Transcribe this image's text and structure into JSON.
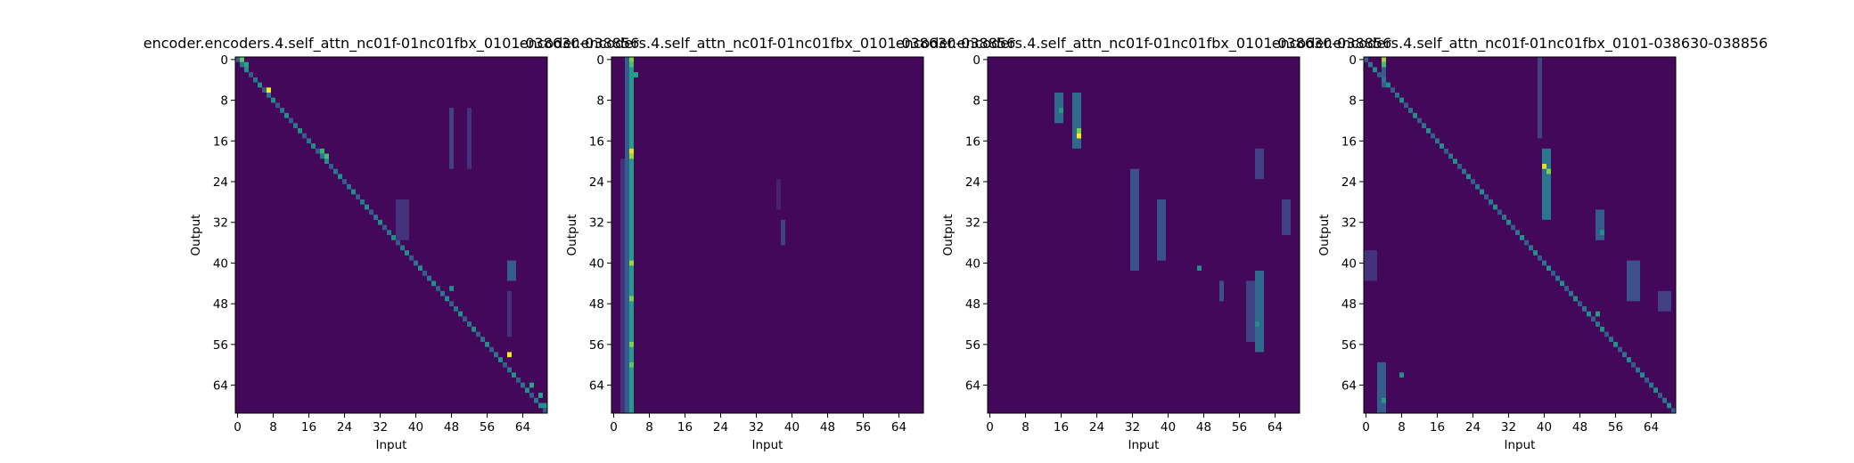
{
  "chart_data": [
    {
      "type": "heatmap",
      "title": "encoder.encoders.4.self_attn_nc01f-01nc01fbx_0101-038630-038856",
      "xlabel": "Input",
      "ylabel": "Output",
      "xlim": [
        0,
        70
      ],
      "ylim": [
        0,
        70
      ],
      "xticks": [
        "0",
        "8",
        "16",
        "24",
        "32",
        "40",
        "48",
        "56",
        "64"
      ],
      "yticks": [
        "0",
        "8",
        "16",
        "24",
        "32",
        "40",
        "48",
        "56",
        "64"
      ],
      "colormap": "viridis",
      "highlights": [
        {
          "x": 1,
          "y": 0,
          "v": 0.75
        },
        {
          "x": 2,
          "y": 1,
          "v": 0.6
        },
        {
          "x": 7,
          "y": 6,
          "v": 1.0
        },
        {
          "x": 19,
          "y": 18,
          "v": 0.65
        },
        {
          "x": 20,
          "y": 19,
          "v": 0.7
        },
        {
          "x": 61,
          "y": 58,
          "v": 1.0
        },
        {
          "x": 48,
          "y": 45,
          "v": 0.5
        },
        {
          "x": 66,
          "y": 64,
          "v": 0.6
        },
        {
          "x": 68,
          "y": 66,
          "v": 0.6
        },
        {
          "x": 69,
          "y": 68,
          "v": 0.5
        }
      ],
      "bands": [
        {
          "x0": 48,
          "x1": 49,
          "y0": 10,
          "y1": 22,
          "v": 0.2
        },
        {
          "x0": 52,
          "x1": 53,
          "y0": 10,
          "y1": 22,
          "v": 0.15
        },
        {
          "x0": 36,
          "x1": 39,
          "y0": 28,
          "y1": 36,
          "v": 0.15
        },
        {
          "x0": 61,
          "x1": 63,
          "y0": 40,
          "y1": 44,
          "v": 0.3
        },
        {
          "x0": 61,
          "x1": 62,
          "y0": 46,
          "y1": 55,
          "v": 0.15
        }
      ],
      "diagonal": true
    },
    {
      "type": "heatmap",
      "title": "encoder.encoders.4.self_attn_nc01f-01nc01fbx_0101-038630-038856",
      "xlabel": "Input",
      "ylabel": "Output",
      "xlim": [
        0,
        70
      ],
      "ylim": [
        0,
        70
      ],
      "xticks": [
        "0",
        "8",
        "16",
        "24",
        "32",
        "40",
        "48",
        "56",
        "64"
      ],
      "yticks": [
        "0",
        "8",
        "16",
        "24",
        "32",
        "40",
        "48",
        "56",
        "64"
      ],
      "colormap": "viridis",
      "highlights": [
        {
          "x": 4,
          "y": 0,
          "v": 0.8
        },
        {
          "x": 4,
          "y": 1,
          "v": 0.7
        },
        {
          "x": 5,
          "y": 3,
          "v": 0.6
        },
        {
          "x": 4,
          "y": 18,
          "v": 0.95
        },
        {
          "x": 4,
          "y": 19,
          "v": 0.85
        },
        {
          "x": 4,
          "y": 40,
          "v": 0.85
        },
        {
          "x": 4,
          "y": 47,
          "v": 0.8
        },
        {
          "x": 4,
          "y": 56,
          "v": 0.8
        },
        {
          "x": 4,
          "y": 60,
          "v": 0.75
        }
      ],
      "bands": [
        {
          "x0": 4,
          "x1": 5,
          "y0": 0,
          "y1": 70,
          "v": 0.55
        },
        {
          "x0": 3,
          "x1": 4,
          "y0": 0,
          "y1": 70,
          "v": 0.3
        },
        {
          "x0": 2,
          "x1": 3,
          "y0": 20,
          "y1": 70,
          "v": 0.15
        },
        {
          "x0": 38,
          "x1": 39,
          "y0": 32,
          "y1": 37,
          "v": 0.2
        },
        {
          "x0": 37,
          "x1": 38,
          "y0": 24,
          "y1": 30,
          "v": 0.1
        }
      ],
      "diagonal": false
    },
    {
      "type": "heatmap",
      "title": "encoder.encoders.4.self_attn_nc01f-01nc01fbx_0101-038630-038856",
      "xlabel": "Input",
      "ylabel": "Output",
      "xlim": [
        0,
        70
      ],
      "ylim": [
        0,
        70
      ],
      "xticks": [
        "0",
        "8",
        "16",
        "24",
        "32",
        "40",
        "48",
        "56",
        "64"
      ],
      "yticks": [
        "0",
        "8",
        "16",
        "24",
        "32",
        "40",
        "48",
        "56",
        "64"
      ],
      "colormap": "viridis",
      "highlights": [
        {
          "x": 20,
          "y": 15,
          "v": 1.0
        },
        {
          "x": 20,
          "y": 14,
          "v": 0.8
        },
        {
          "x": 16,
          "y": 10,
          "v": 0.55
        },
        {
          "x": 47,
          "y": 41,
          "v": 0.5
        },
        {
          "x": 60,
          "y": 52,
          "v": 0.5
        }
      ],
      "bands": [
        {
          "x0": 15,
          "x1": 17,
          "y0": 7,
          "y1": 13,
          "v": 0.35
        },
        {
          "x0": 19,
          "x1": 21,
          "y0": 7,
          "y1": 18,
          "v": 0.35
        },
        {
          "x0": 32,
          "x1": 34,
          "y0": 22,
          "y1": 42,
          "v": 0.25
        },
        {
          "x0": 38,
          "x1": 40,
          "y0": 28,
          "y1": 40,
          "v": 0.25
        },
        {
          "x0": 60,
          "x1": 62,
          "y0": 42,
          "y1": 58,
          "v": 0.35
        },
        {
          "x0": 58,
          "x1": 60,
          "y0": 44,
          "y1": 56,
          "v": 0.2
        },
        {
          "x0": 60,
          "x1": 62,
          "y0": 18,
          "y1": 24,
          "v": 0.2
        },
        {
          "x0": 66,
          "x1": 68,
          "y0": 28,
          "y1": 35,
          "v": 0.2
        },
        {
          "x0": 52,
          "x1": 53,
          "y0": 44,
          "y1": 48,
          "v": 0.25
        }
      ],
      "diagonal": false
    },
    {
      "type": "heatmap",
      "title": "encoder.encoders.4.self_attn_nc01f-01nc01fbx_0101-038630-038856",
      "xlabel": "Input",
      "ylabel": "Output",
      "xlim": [
        0,
        70
      ],
      "ylim": [
        0,
        70
      ],
      "xticks": [
        "0",
        "8",
        "16",
        "24",
        "32",
        "40",
        "48",
        "56",
        "64"
      ],
      "yticks": [
        "0",
        "8",
        "16",
        "24",
        "32",
        "40",
        "48",
        "56",
        "64"
      ],
      "colormap": "viridis",
      "highlights": [
        {
          "x": 4,
          "y": 0,
          "v": 0.85
        },
        {
          "x": 4,
          "y": 1,
          "v": 0.7
        },
        {
          "x": 40,
          "y": 21,
          "v": 0.95
        },
        {
          "x": 41,
          "y": 22,
          "v": 0.8
        },
        {
          "x": 4,
          "y": 67,
          "v": 0.55
        },
        {
          "x": 8,
          "y": 62,
          "v": 0.5
        },
        {
          "x": 52,
          "y": 50,
          "v": 0.55
        },
        {
          "x": 53,
          "y": 34,
          "v": 0.5
        }
      ],
      "bands": [
        {
          "x0": 40,
          "x1": 42,
          "y0": 18,
          "y1": 32,
          "v": 0.4
        },
        {
          "x0": 39,
          "x1": 40,
          "y0": 0,
          "y1": 16,
          "v": 0.2
        },
        {
          "x0": 4,
          "x1": 5,
          "y0": 0,
          "y1": 6,
          "v": 0.3
        },
        {
          "x0": 0,
          "x1": 3,
          "y0": 38,
          "y1": 44,
          "v": 0.15
        },
        {
          "x0": 3,
          "x1": 5,
          "y0": 60,
          "y1": 70,
          "v": 0.3
        },
        {
          "x0": 52,
          "x1": 54,
          "y0": 30,
          "y1": 36,
          "v": 0.3
        },
        {
          "x0": 59,
          "x1": 62,
          "y0": 40,
          "y1": 48,
          "v": 0.25
        },
        {
          "x0": 66,
          "x1": 69,
          "y0": 46,
          "y1": 50,
          "v": 0.2
        }
      ],
      "diagonal": true
    }
  ]
}
